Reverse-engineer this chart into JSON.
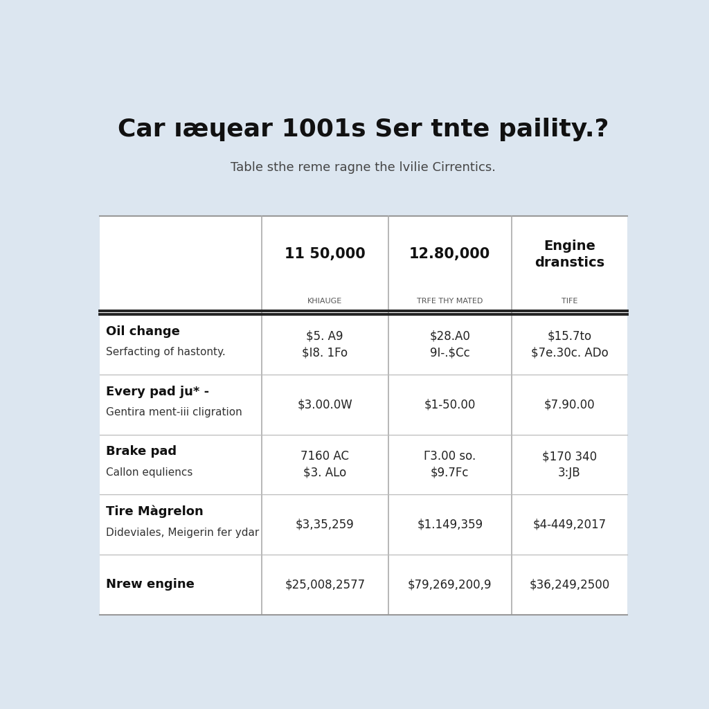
{
  "title": "Car ıæɥear 1001s Ser tnte paility.?",
  "subtitle": "Table sthe reme ragne the lvilie Cirrentics.",
  "background_color": "#dce6f0",
  "table_background": "#ffffff",
  "col_headers": [
    {
      "line1": "11 50,000",
      "line2": "KHIAUGE"
    },
    {
      "line1": "12.80,000",
      "line2": "TRFE THY MATED"
    },
    {
      "line1": "Engine\ndranstics",
      "line2": "TIFE"
    }
  ],
  "rows": [
    {
      "label_bold": "Oil change",
      "label_sub": "Serfacting of hastonty.",
      "values": [
        "$5. A9\n$I8. 1Fo",
        "$28.A0\n9I-.$Cc",
        "$15.7to\n$7e.30c. ADo"
      ]
    },
    {
      "label_bold": "Every pad ju* -",
      "label_sub": "Gentira ment-iii cligration",
      "values": [
        "$3.00.0W",
        "$1-50.00",
        "$7.90.00"
      ]
    },
    {
      "label_bold": "Brake pad",
      "label_sub": "Callon equliencs",
      "values": [
        "7160 AC\n$3. ALo",
        "Γ3.00 so.\n$9.7Fc",
        "$170 340\n3:JB"
      ]
    },
    {
      "label_bold": "Tire Màgrelon",
      "label_sub": "Dideviales, Meigerin fer ydar",
      "values": [
        "$3,35,259",
        "$1.149,359",
        "$4-449,2017"
      ]
    },
    {
      "label_bold": "Nrew engine",
      "label_sub": "",
      "values": [
        "$25,008,2577",
        "$79,269,200,9",
        "$36,249,2500"
      ]
    }
  ]
}
